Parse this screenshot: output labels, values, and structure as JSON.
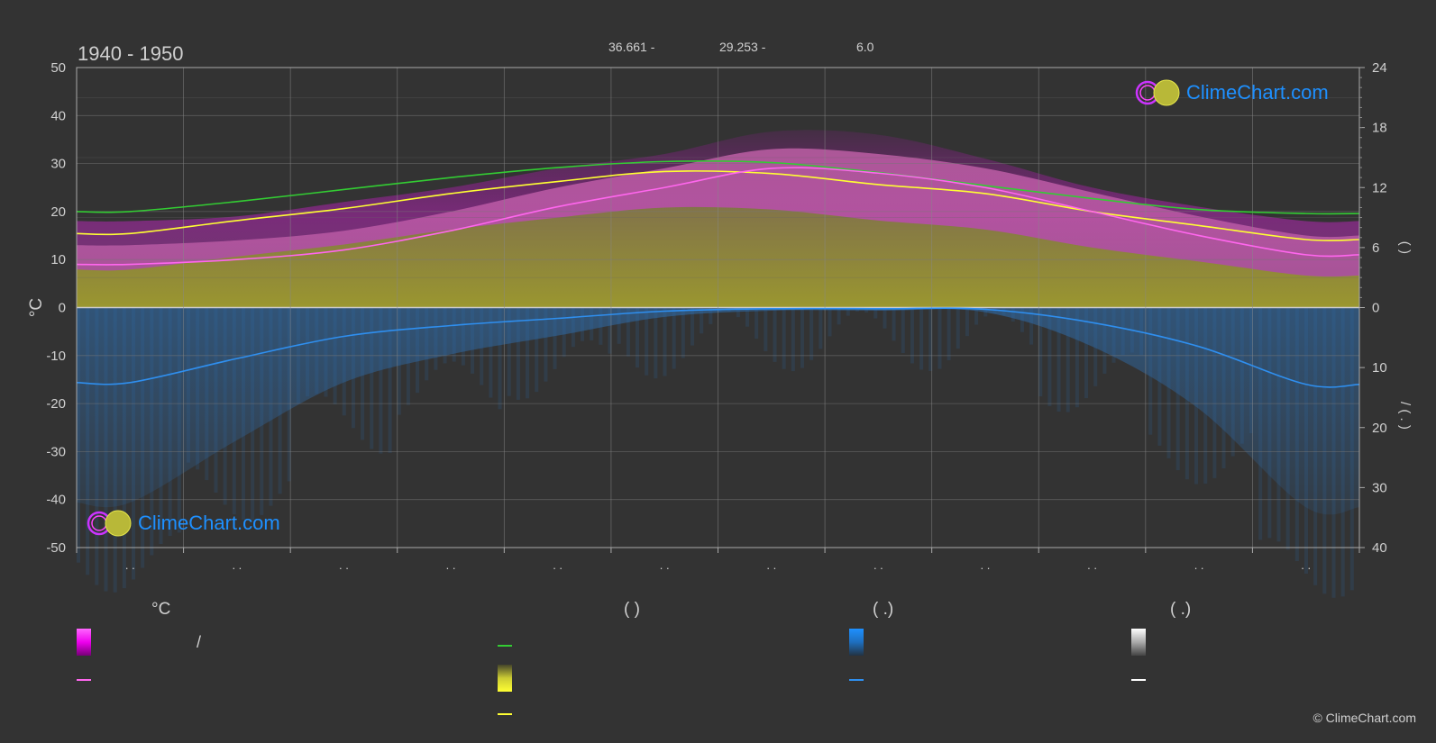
{
  "title": "1940 - 1950",
  "top_info": [
    "36.661 -",
    "29.253 -",
    "6.0"
  ],
  "logo_text": "ClimeChart.com",
  "copyright": "© ClimeChart.com",
  "legend": {
    "col1_head": "°C",
    "col2_head": "(          )",
    "col3_head": "(   .)",
    "col4_head": "(   .)",
    "slash": "/"
  },
  "colors": {
    "background": "#333333",
    "magenta": "#ff00ff",
    "pink": "#ff66ee",
    "yellow": "#ffff33",
    "olive": "#8c8c2e",
    "green": "#33cc33",
    "blue": "#2f8fef",
    "white": "#ffffff",
    "grid": "#666666"
  },
  "chart_data": {
    "type": "line",
    "left_axis": {
      "label": "°C",
      "ticks": [
        50,
        40,
        30,
        20,
        10,
        0,
        -10,
        -20,
        -30,
        -40,
        -50
      ],
      "range": [
        -50,
        50
      ]
    },
    "right_axis_top": {
      "ticks": [
        24,
        18,
        12,
        6,
        0
      ],
      "range": [
        0,
        24
      ],
      "label": "(   )"
    },
    "right_axis_bottom": {
      "ticks": [
        0,
        10,
        20,
        30,
        40
      ],
      "range": [
        0,
        40
      ],
      "label": "/    (  .  )"
    },
    "x_month_labels": [
      ". .",
      ". .",
      ". .",
      ". .",
      ". .",
      ". .",
      ". .",
      ". .",
      ". .",
      ". .",
      ". .",
      ". ."
    ],
    "grid": true,
    "daylight_hours": [
      9.6,
      10.6,
      11.8,
      13.0,
      14.0,
      14.6,
      14.5,
      13.5,
      12.2,
      10.9,
      9.8,
      9.4
    ],
    "sunshine_hours": [
      7.4,
      8.7,
      9.9,
      11.4,
      12.6,
      13.6,
      13.4,
      12.3,
      11.4,
      9.6,
      8.2,
      6.8
    ],
    "mean_temperature": [
      9,
      10,
      12,
      16,
      21,
      25,
      29,
      28,
      25,
      20,
      15,
      11
    ],
    "max_temperature_band": [
      18,
      19,
      22,
      25,
      29,
      32,
      36.661,
      36,
      31,
      25,
      21,
      18
    ],
    "precipitation_mm": [
      12.5,
      8.5,
      4.8,
      3.0,
      1.8,
      0.6,
      0.2,
      0.2,
      0.3,
      2.5,
      6.5,
      12.8
    ]
  }
}
